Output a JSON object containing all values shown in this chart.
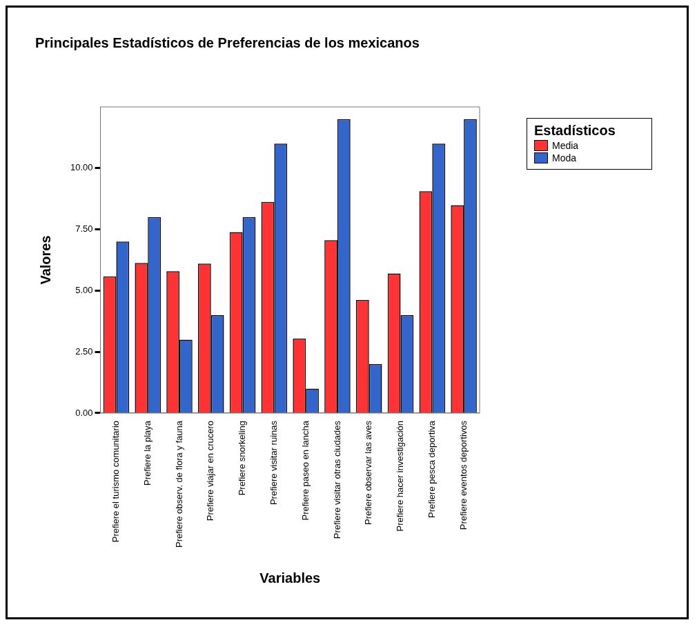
{
  "chart_data": {
    "type": "bar",
    "title": "Principales Estadísticos de Preferencias de los mexicanos",
    "xlabel": "Variables",
    "ylabel": "Valores",
    "legend_title": "Estadísticos",
    "categories": [
      "Prefiere el turismo comunitario",
      "Prefiere la playa",
      "Prefiere observ. de flora y fauna",
      "Prefiere viajar en crucero",
      "Prefiere snorkeling",
      "Prefiere visitar ruinas",
      "Prefiere paseo en lancha",
      "Prefiere visitar otras ciudades",
      "Prefiere observar las aves",
      "Prefiere hacer investigación",
      "Prefiere pesca deportiva",
      "Prefiere eventos deportivos"
    ],
    "series": [
      {
        "name": "Media",
        "color": "#ff3333",
        "values": [
          5.58,
          6.13,
          5.79,
          6.1,
          7.39,
          8.62,
          3.04,
          7.06,
          4.62,
          5.7,
          9.06,
          8.49
        ]
      },
      {
        "name": "Moda",
        "color": "#3366cc",
        "values": [
          7,
          8,
          3,
          4,
          8,
          11,
          1,
          12,
          2,
          4,
          11,
          12
        ]
      }
    ],
    "ylim": [
      0,
      12.5
    ],
    "yticks": [
      {
        "value": 0,
        "label": "0.00"
      },
      {
        "value": 2.5,
        "label": "2.50"
      },
      {
        "value": 5,
        "label": "5.00"
      },
      {
        "value": 7.5,
        "label": "7.50"
      },
      {
        "value": 10,
        "label": "10.00"
      }
    ],
    "grid": false,
    "legend": "top right"
  }
}
